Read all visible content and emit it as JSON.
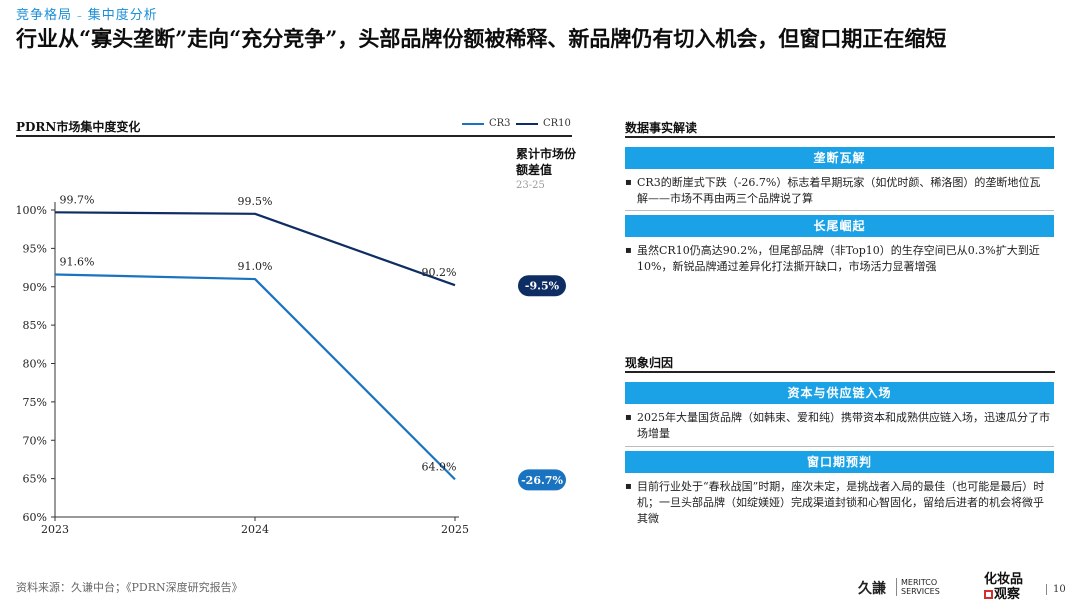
{
  "header": {
    "breadcrumb_1": "竞争格局",
    "breadcrumb_sep": "–",
    "breadcrumb_2": "集中度分析",
    "headline": "行业从“寡头垄断”走向“充分竞争”，头部品牌份额被稀释、新品牌仍有切入机会，但窗口期正在缩短"
  },
  "chart_panel": {
    "title": "PDRN市场集中度变化",
    "diff_title": "累计市场份额差值",
    "diff_period": "23-25"
  },
  "chart_data": {
    "type": "line",
    "title": "PDRN市场集中度变化",
    "categories": [
      "2023",
      "2024",
      "2025"
    ],
    "series": [
      {
        "name": "CR3",
        "values": [
          91.6,
          91.0,
          64.9
        ],
        "labels": [
          "91.6%",
          "91.0%",
          "64.9%"
        ],
        "color": "#1a73c0",
        "diff": "-26.7%"
      },
      {
        "name": "CR10",
        "values": [
          99.7,
          99.5,
          90.2
        ],
        "labels": [
          "99.7%",
          "99.5%",
          "90.2%"
        ],
        "color": "#0e2d63",
        "diff": "-9.5%"
      }
    ],
    "ylim": [
      60,
      100
    ],
    "yticks": [
      60,
      65,
      70,
      75,
      80,
      85,
      90,
      95,
      100
    ],
    "ytick_labels": [
      "60%",
      "65%",
      "70%",
      "75%",
      "80%",
      "85%",
      "90%",
      "95%",
      "100%"
    ],
    "xlabel": "",
    "ylabel": "",
    "grid": false,
    "legend": "top-right"
  },
  "facts": {
    "title": "数据事实解读",
    "items": [
      {
        "heading": "垄断瓦解",
        "text": "CR3的断崖式下跌（-26.7%）标志着早期玩家（如优时颜、稀洛图）的垄断地位瓦解——市场不再由两三个品牌说了算"
      },
      {
        "heading": "长尾崛起",
        "text": "虽然CR10仍高达90.2%，但尾部品牌（非Top10）的生存空间已从0.3%扩大到近10%，新锐品牌通过差异化打法撕开缺口，市场活力显著增强"
      }
    ]
  },
  "causes": {
    "title": "现象归因",
    "items": [
      {
        "heading": "资本与供应链入场",
        "text": "2025年大量国货品牌（如韩束、爱和纯）携带资本和成熟供应链入场，迅速瓜分了市场增量"
      },
      {
        "heading": "窗口期预判",
        "text": "目前行业处于“春秋战国”时期，座次未定，是挑战者入局的最佳（也可能是最后）时机；一旦头部品牌（如绽媄娅）完成渠道封锁和心智固化，留给后进者的机会将微乎其微"
      }
    ]
  },
  "footer": {
    "source": "资料来源：久谦中台；《PDRN深度研究报告》",
    "logo_jq": "久謙",
    "logo_meritco_1": "MERITCO",
    "logo_meritco_2": "SERVICES",
    "logo_hz_1": "化妆品",
    "logo_hz_2": "观察",
    "page_number": "10"
  }
}
